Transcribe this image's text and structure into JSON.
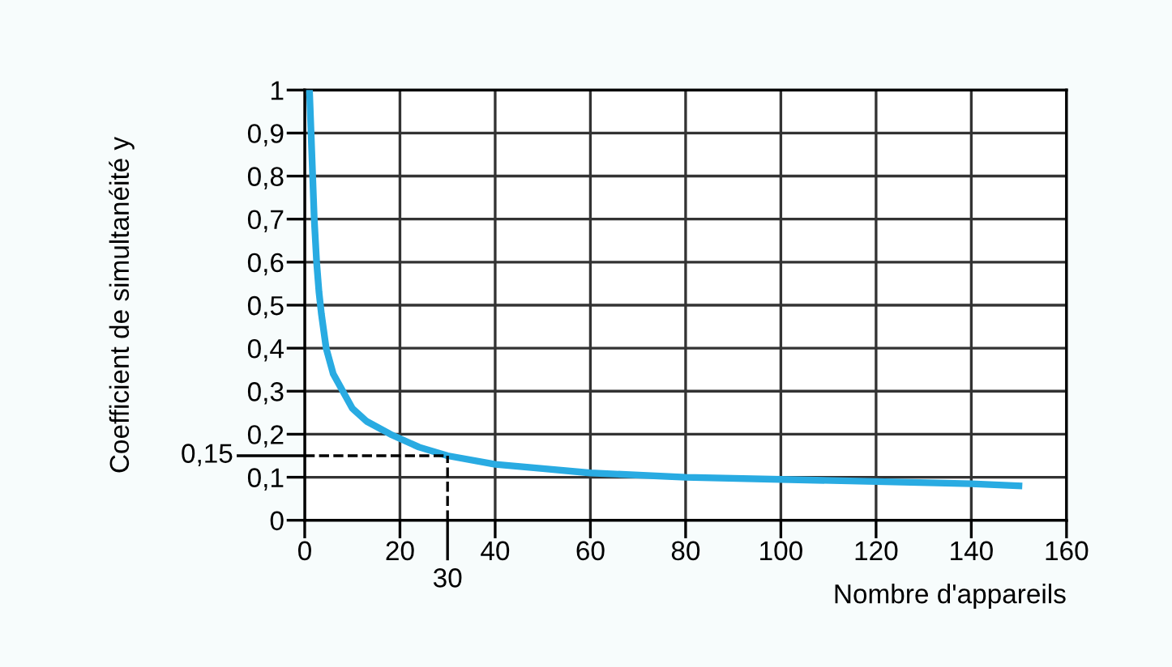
{
  "chart_data": {
    "type": "line",
    "xlabel": "Nombre d'appareils",
    "ylabel": "Coefficient de simultanéité y",
    "series": [
      {
        "color": "#29abe2",
        "x": [
          1,
          1.5,
          2,
          2.5,
          3,
          3.5,
          4.5,
          6,
          8,
          10,
          13,
          18,
          24,
          30,
          40,
          50,
          60,
          80,
          100,
          120,
          140,
          150
        ],
        "values": [
          1,
          0.85,
          0.7,
          0.6,
          0.53,
          0.48,
          0.4,
          0.34,
          0.3,
          0.26,
          0.23,
          0.2,
          0.17,
          0.15,
          0.13,
          0.12,
          0.11,
          0.1,
          0.095,
          0.09,
          0.085,
          0.08
        ]
      }
    ],
    "xlim": [
      0,
      160
    ],
    "ylim": [
      0,
      1
    ],
    "xticks": [
      0,
      20,
      40,
      60,
      80,
      100,
      120,
      140,
      160
    ],
    "yticks": [
      0,
      {
        "value": 0.1,
        "label": "0,1"
      },
      {
        "value": 0.2,
        "label": "0,2"
      },
      {
        "value": 0.3,
        "label": "0,3"
      },
      {
        "value": 0.4,
        "label": "0,4"
      },
      {
        "value": 0.5,
        "label": "0,5"
      },
      {
        "value": 0.6,
        "label": "0,6"
      },
      {
        "value": 0.7,
        "label": "0,7"
      },
      {
        "value": 0.8,
        "label": "0,8"
      },
      {
        "value": 0.9,
        "label": "0,9"
      },
      1
    ],
    "ref_lines": [
      {
        "axis": "x",
        "value": 30,
        "label": "30",
        "line_style": "dashed",
        "color": "#000000"
      },
      {
        "axis": "y",
        "value": 0.15,
        "label": "0,15",
        "line_style": "dashed",
        "color": "#000000"
      }
    ],
    "grid": true,
    "marker": "none",
    "line_style": "solid"
  }
}
